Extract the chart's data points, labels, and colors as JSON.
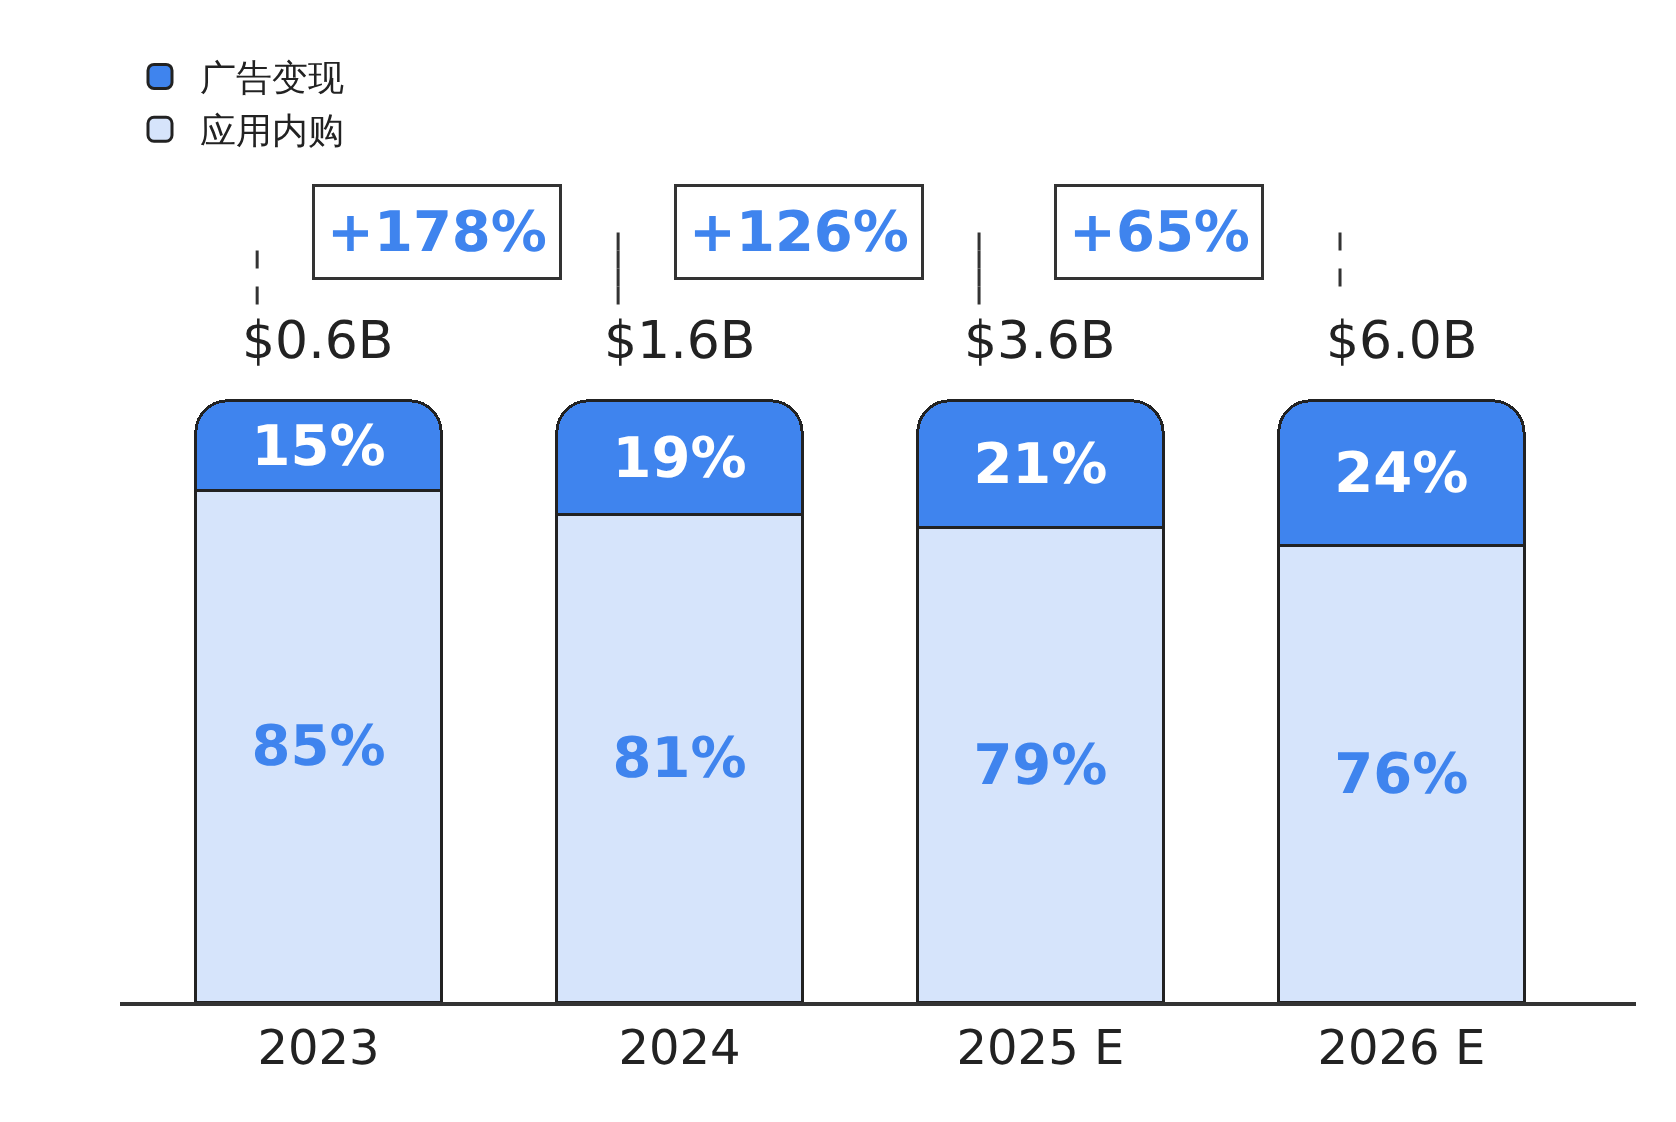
{
  "chart_data": {
    "type": "bar",
    "stacked": true,
    "data_labels": true,
    "categories": [
      "2023",
      "2024",
      "2025 E",
      "2026 E"
    ],
    "series": [
      {
        "name": "应用内购",
        "color": "#d6e4fb",
        "values": [
          85,
          81,
          79,
          76
        ],
        "value_labels": [
          "85%",
          "81%",
          "79%",
          "76%"
        ]
      },
      {
        "name": "广告变现",
        "color": "#3f84ee",
        "values": [
          15,
          19,
          21,
          24
        ],
        "value_labels": [
          "15%",
          "19%",
          "21%",
          "24%"
        ]
      }
    ],
    "annotations": [
      {
        "text": "$0.6B",
        "x": "2023",
        "y": 100
      },
      {
        "text": "$1.6B",
        "x": "2024",
        "y": 100
      },
      {
        "text": "$3.6B",
        "x": "2025 E",
        "y": 100
      },
      {
        "text": "$6.0B",
        "x": "2026 E",
        "y": 100
      },
      "+178%",
      "+126%",
      "+65%"
    ],
    "legend": "top left"
  }
}
